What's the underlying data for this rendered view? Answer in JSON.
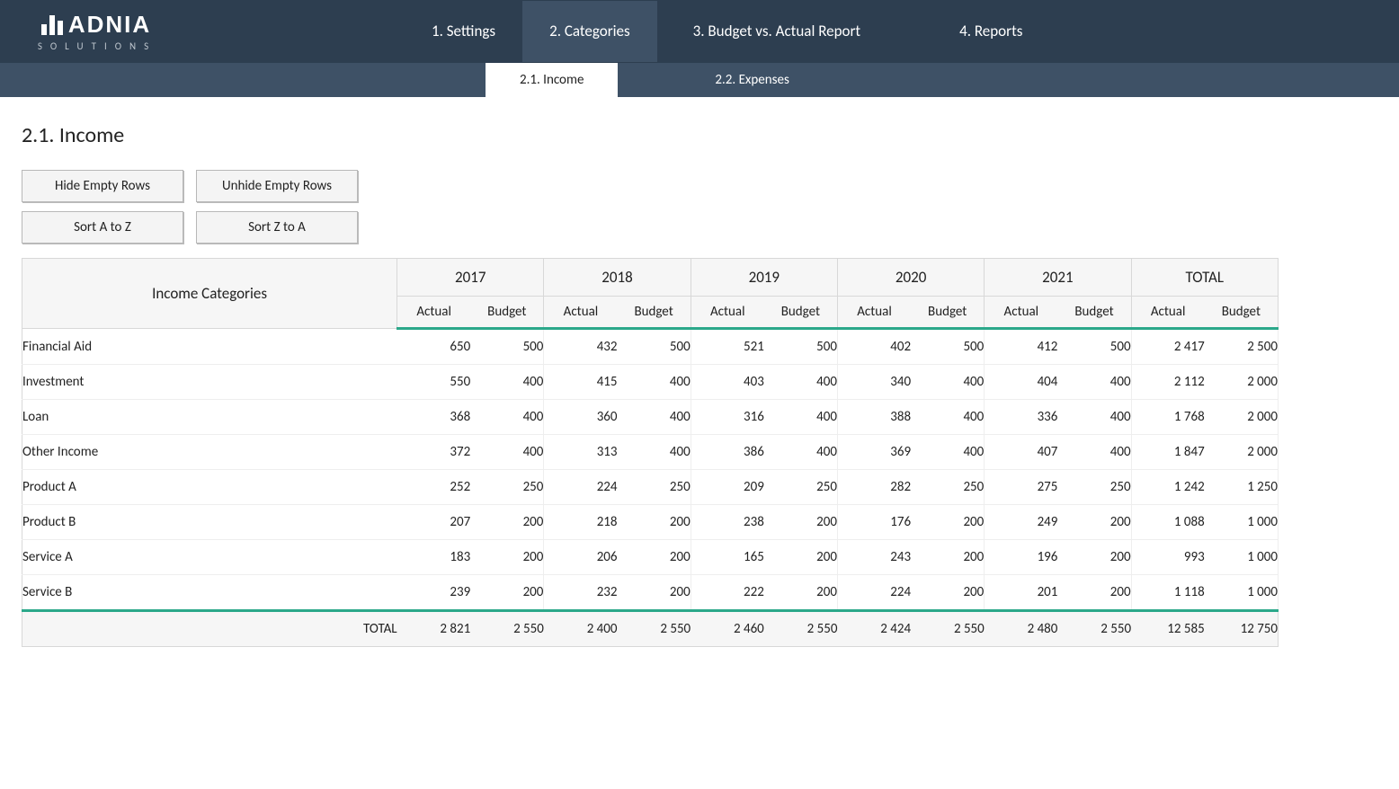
{
  "logo": {
    "name": "ADNIA",
    "sub": "SOLUTIONS"
  },
  "nav": {
    "items": [
      {
        "label": "1. Settings"
      },
      {
        "label": "2. Categories"
      },
      {
        "label": "3. Budget vs. Actual Report"
      },
      {
        "label": "4. Reports"
      }
    ],
    "activeIndex": 1
  },
  "subnav": {
    "items": [
      {
        "label": "2.1. Income"
      },
      {
        "label": "2.2. Expenses"
      }
    ],
    "activeIndex": 0
  },
  "page": {
    "title": "2.1. Income"
  },
  "buttons": {
    "hide": "Hide Empty Rows",
    "unhide": "Unhide Empty Rows",
    "sortaz": "Sort A to Z",
    "sortza": "Sort Z to A"
  },
  "table": {
    "header": {
      "first": "Income Categories",
      "years": [
        "2017",
        "2018",
        "2019",
        "2020",
        "2021",
        "TOTAL"
      ],
      "sub": [
        "Actual",
        "Budget"
      ]
    },
    "rows": [
      {
        "name": "Financial Aid",
        "vals": [
          "650",
          "500",
          "432",
          "500",
          "521",
          "500",
          "402",
          "500",
          "412",
          "500",
          "2 417",
          "2 500"
        ]
      },
      {
        "name": "Investment",
        "vals": [
          "550",
          "400",
          "415",
          "400",
          "403",
          "400",
          "340",
          "400",
          "404",
          "400",
          "2 112",
          "2 000"
        ]
      },
      {
        "name": "Loan",
        "vals": [
          "368",
          "400",
          "360",
          "400",
          "316",
          "400",
          "388",
          "400",
          "336",
          "400",
          "1 768",
          "2 000"
        ]
      },
      {
        "name": "Other Income",
        "vals": [
          "372",
          "400",
          "313",
          "400",
          "386",
          "400",
          "369",
          "400",
          "407",
          "400",
          "1 847",
          "2 000"
        ]
      },
      {
        "name": "Product A",
        "vals": [
          "252",
          "250",
          "224",
          "250",
          "209",
          "250",
          "282",
          "250",
          "275",
          "250",
          "1 242",
          "1 250"
        ]
      },
      {
        "name": "Product B",
        "vals": [
          "207",
          "200",
          "218",
          "200",
          "238",
          "200",
          "176",
          "200",
          "249",
          "200",
          "1 088",
          "1 000"
        ]
      },
      {
        "name": "Service A",
        "vals": [
          "183",
          "200",
          "206",
          "200",
          "165",
          "200",
          "243",
          "200",
          "196",
          "200",
          "993",
          "1 000"
        ]
      },
      {
        "name": "Service B",
        "vals": [
          "239",
          "200",
          "232",
          "200",
          "222",
          "200",
          "224",
          "200",
          "201",
          "200",
          "1 118",
          "1 000"
        ]
      }
    ],
    "total": {
      "label": "TOTAL",
      "vals": [
        "2 821",
        "2 550",
        "2 400",
        "2 550",
        "2 460",
        "2 550",
        "2 424",
        "2 550",
        "2 480",
        "2 550",
        "12 585",
        "12 750"
      ]
    }
  },
  "colors": {
    "header_bg": "#2d3e50",
    "subheader_bg": "#3e5166",
    "accent": "#2ba88a",
    "table_head_bg": "#f6f6f6",
    "border": "#d8d8d8"
  }
}
